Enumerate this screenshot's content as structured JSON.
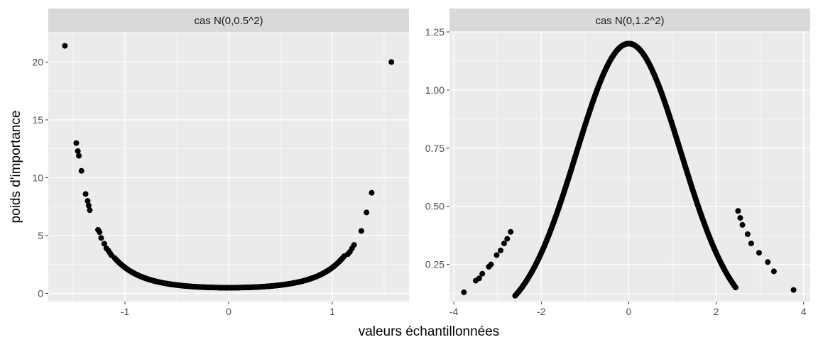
{
  "figure": {
    "xlabel": "valeurs échantillonnées",
    "ylabel": "poids d'importance"
  },
  "colors": {
    "panel_bg": "#ebebeb",
    "strip_bg": "#d9d9d9",
    "grid_major": "#ffffff",
    "point": "#000000"
  },
  "chart_data": [
    {
      "type": "scatter",
      "title": "cas N(0,0.5^2)",
      "xlim": [
        -1.74,
        1.74
      ],
      "ylim": [
        -0.7,
        22.6
      ],
      "x_ticks": [
        -1,
        0,
        1
      ],
      "x_tick_labels": [
        "-1",
        "0",
        "1"
      ],
      "y_ticks": [
        0,
        5,
        10,
        15,
        20
      ],
      "y_tick_labels": [
        "0",
        "5",
        "10",
        "15",
        "20"
      ],
      "grid": true,
      "formula": "w(x) = 0.5 * exp(1.5 * x^2)",
      "points": [
        [
          -1.58,
          21.4
        ],
        [
          1.57,
          20.0
        ],
        [
          -1.47,
          13.0
        ],
        [
          -1.455,
          12.3
        ],
        [
          -1.445,
          11.9
        ],
        [
          -1.42,
          10.6
        ],
        [
          -1.38,
          8.6
        ],
        [
          -1.36,
          8.0
        ],
        [
          -1.35,
          7.6
        ],
        [
          -1.34,
          7.2
        ],
        [
          -1.26,
          5.5
        ],
        [
          -1.245,
          5.3
        ],
        [
          -1.23,
          4.8
        ],
        [
          -1.2,
          4.3
        ],
        [
          -1.18,
          3.9
        ],
        [
          -1.16,
          3.7
        ],
        [
          -1.145,
          3.5
        ],
        [
          -1.13,
          3.3
        ],
        [
          1.38,
          8.7
        ],
        [
          1.33,
          7.0
        ],
        [
          1.28,
          5.4
        ],
        [
          1.21,
          4.2
        ],
        [
          1.19,
          3.9
        ],
        [
          1.17,
          3.6
        ],
        [
          1.15,
          3.4
        ]
      ],
      "dense_curve_range": [
        -1.1,
        1.12
      ]
    },
    {
      "type": "scatter",
      "title": "cas N(0,1.2^2)",
      "xlim": [
        -4.1,
        4.15
      ],
      "ylim": [
        0.09,
        1.25
      ],
      "x_ticks": [
        -4,
        -2,
        0,
        2,
        4
      ],
      "x_tick_labels": [
        "-4",
        "-2",
        "0",
        "2",
        "4"
      ],
      "y_ticks": [
        0.25,
        0.5,
        0.75,
        1.0,
        1.25
      ],
      "y_tick_labels": [
        "0.25",
        "0.50",
        "0.75",
        "1.00",
        "1.25"
      ],
      "grid": true,
      "formula": "w(x) = 1.2 * exp(-0.3472 * x^2)",
      "points": [
        [
          -3.77,
          0.13
        ],
        [
          3.77,
          0.14
        ],
        [
          -3.5,
          0.18
        ],
        [
          -3.42,
          0.19
        ],
        [
          -3.35,
          0.21
        ],
        [
          -3.2,
          0.24
        ],
        [
          -3.15,
          0.25
        ],
        [
          -3.02,
          0.29
        ],
        [
          -2.93,
          0.31
        ],
        [
          -2.85,
          0.34
        ],
        [
          -2.78,
          0.36
        ],
        [
          -2.7,
          0.39
        ],
        [
          3.32,
          0.22
        ],
        [
          3.18,
          0.26
        ],
        [
          2.98,
          0.3
        ],
        [
          2.8,
          0.34
        ],
        [
          2.72,
          0.38
        ],
        [
          2.6,
          0.42
        ],
        [
          2.55,
          0.45
        ],
        [
          2.5,
          0.48
        ]
      ],
      "dense_curve_range": [
        -2.6,
        2.45
      ]
    }
  ]
}
